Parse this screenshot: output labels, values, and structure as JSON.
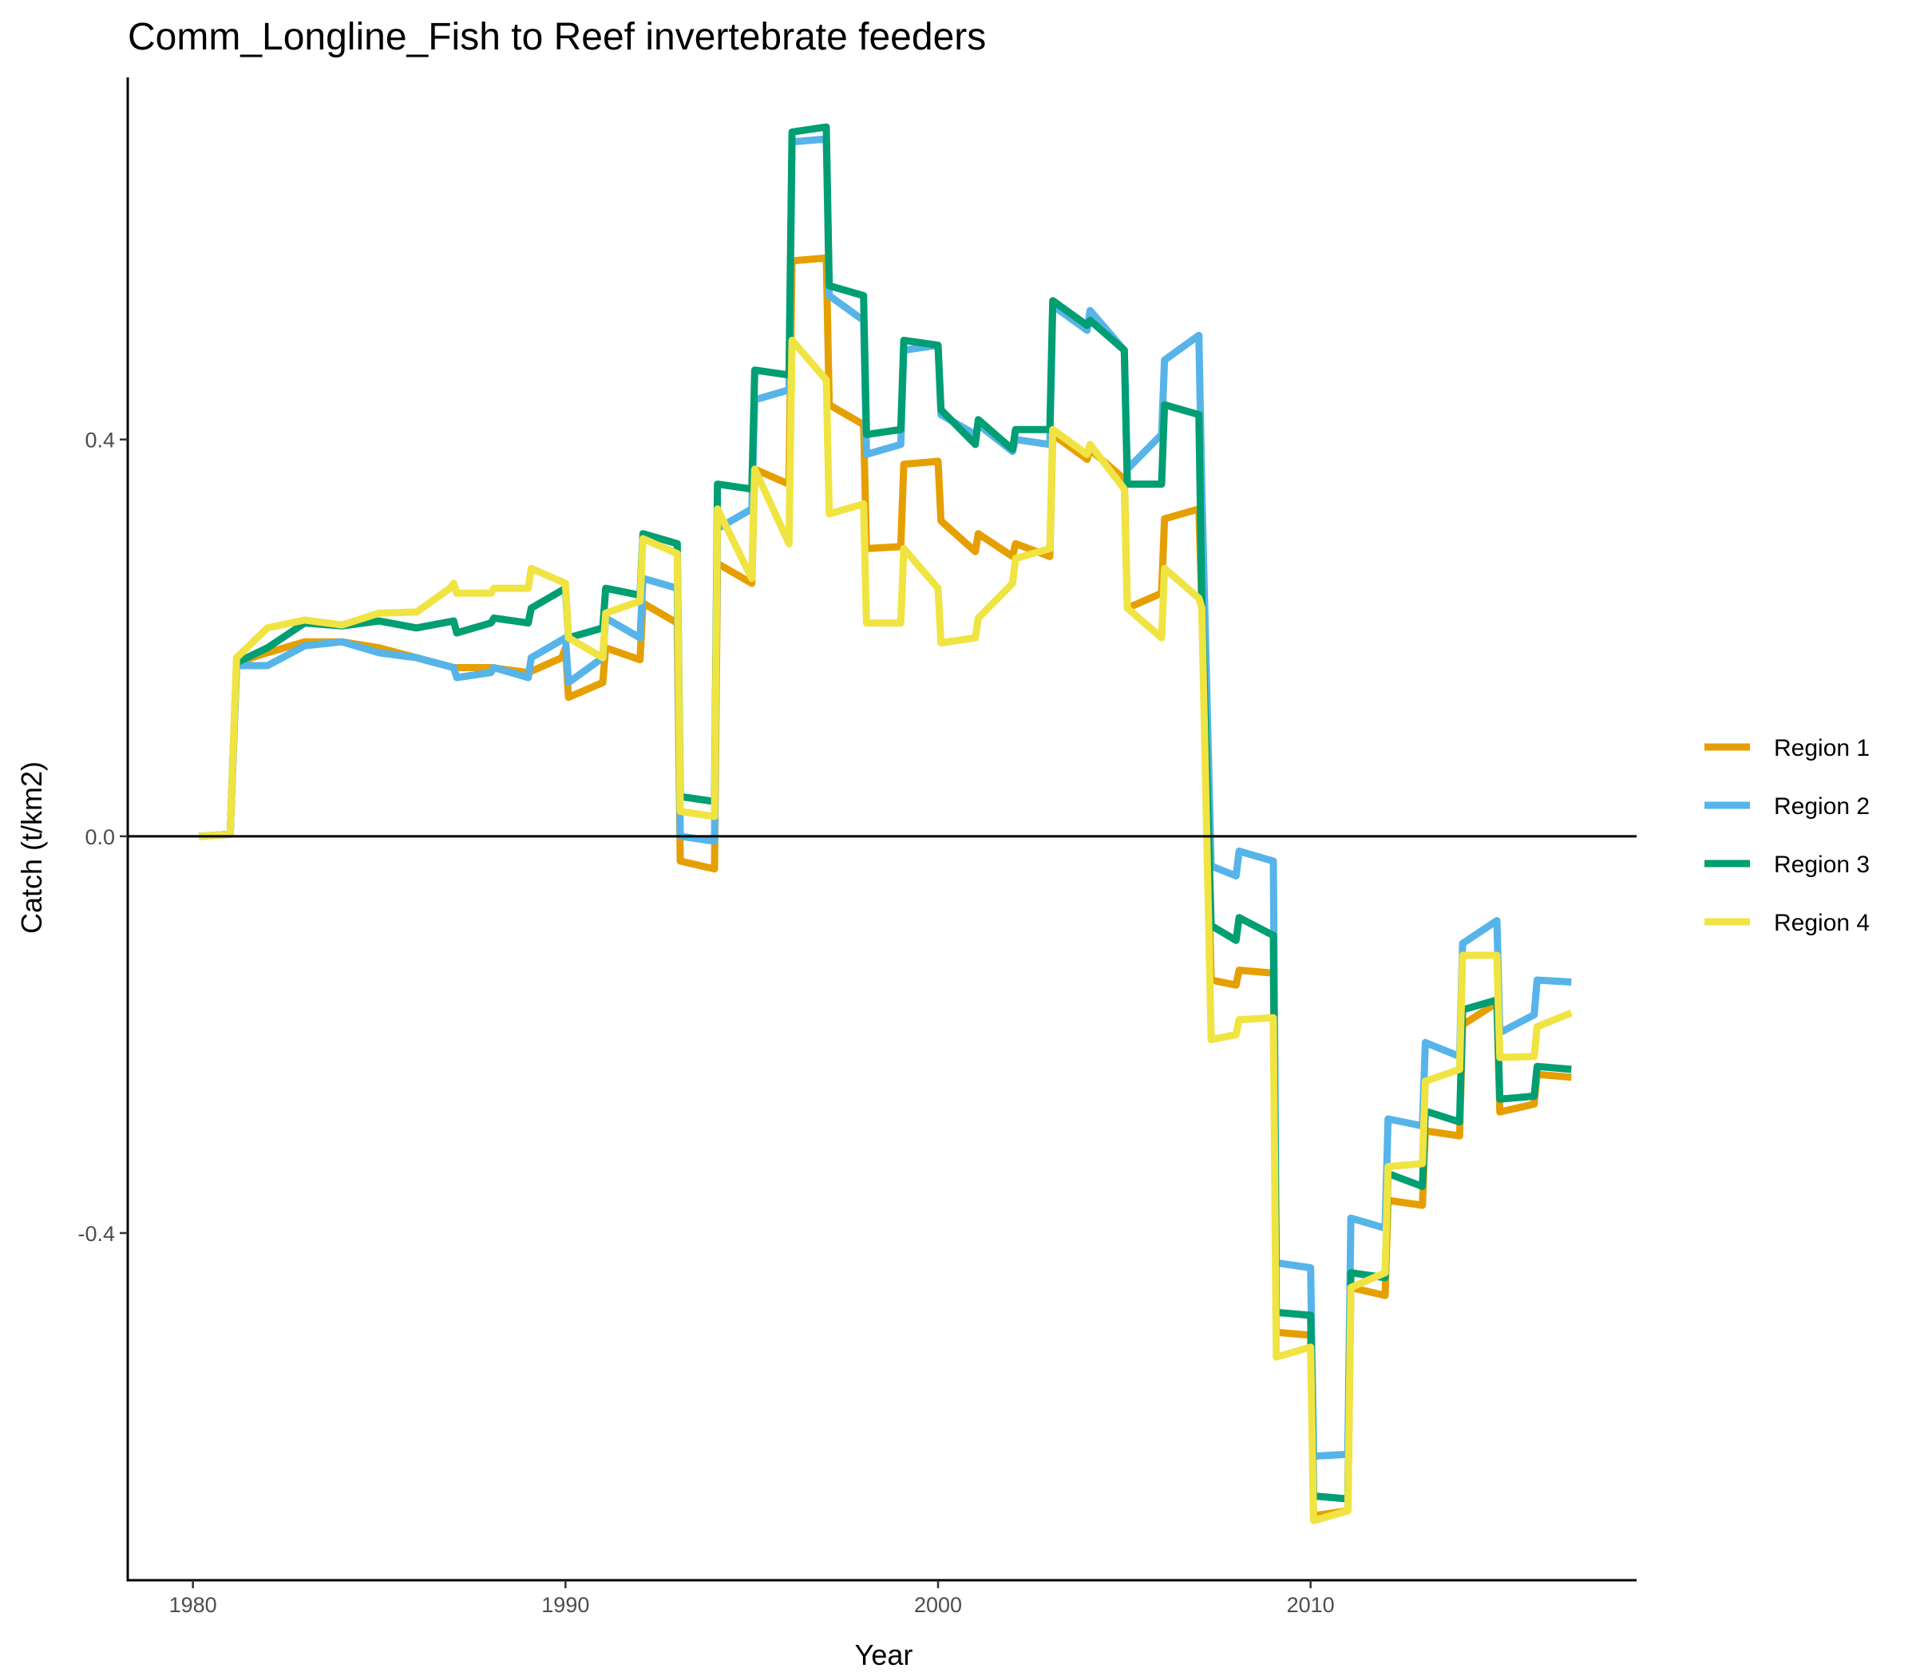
{
  "chart_data": {
    "type": "line",
    "title": "Comm_Longline_Fish to Reef invertebrate feeders",
    "xlabel": "Year",
    "ylabel": "Catch (t/km2)",
    "xlim": [
      1978.25,
      2018.75
    ],
    "ylim": [
      -0.75,
      0.765
    ],
    "xticks": [
      1980,
      1990,
      2000,
      2010
    ],
    "yticks": [
      -0.4,
      0.0,
      0.4
    ],
    "ytick_labels": [
      "-0.4",
      "0.0",
      "0.4"
    ],
    "zero_line": true,
    "grid": false,
    "legend_position": "right",
    "series": [
      {
        "name": "Region 1",
        "color": "#E69F00",
        "points": [
          [
            1980.17,
            0
          ],
          [
            1981.0,
            0.002
          ],
          [
            1981.17,
            0.175
          ],
          [
            1982.0,
            0.185
          ],
          [
            1983.0,
            0.196
          ],
          [
            1984.0,
            0.196
          ],
          [
            1985.0,
            0.19
          ],
          [
            1986.0,
            0.18
          ],
          [
            1987.0,
            0.17
          ],
          [
            1988.0,
            0.17
          ],
          [
            1989.0,
            0.165
          ],
          [
            1989.9,
            0.18
          ],
          [
            1990.0,
            0.19
          ],
          [
            1990.08,
            0.14
          ],
          [
            1991.0,
            0.155
          ],
          [
            1991.08,
            0.19
          ],
          [
            1992.0,
            0.178
          ],
          [
            1992.08,
            0.235
          ],
          [
            1993.0,
            0.215
          ],
          [
            1993.08,
            -0.025
          ],
          [
            1994.0,
            -0.033
          ],
          [
            1994.08,
            0.275
          ],
          [
            1995.0,
            0.255
          ],
          [
            1995.08,
            0.37
          ],
          [
            1996.0,
            0.355
          ],
          [
            1996.08,
            0.58
          ],
          [
            1997.0,
            0.583
          ],
          [
            1997.08,
            0.435
          ],
          [
            1998.0,
            0.415
          ],
          [
            1998.08,
            0.29
          ],
          [
            1999.0,
            0.292
          ],
          [
            1999.08,
            0.375
          ],
          [
            2000.0,
            0.378
          ],
          [
            2000.08,
            0.318
          ],
          [
            2001.0,
            0.287
          ],
          [
            2001.08,
            0.305
          ],
          [
            2002.0,
            0.282
          ],
          [
            2002.08,
            0.295
          ],
          [
            2003.0,
            0.282
          ],
          [
            2003.08,
            0.405
          ],
          [
            2004.0,
            0.38
          ],
          [
            2004.08,
            0.39
          ],
          [
            2005.0,
            0.36
          ],
          [
            2005.08,
            0.23
          ],
          [
            2006.0,
            0.245
          ],
          [
            2006.08,
            0.32
          ],
          [
            2007.0,
            0.33
          ],
          [
            2007.08,
            0.23
          ],
          [
            2007.33,
            -0.145
          ],
          [
            2008.0,
            -0.15
          ],
          [
            2008.08,
            -0.135
          ],
          [
            2009.0,
            -0.138
          ],
          [
            2009.08,
            -0.5
          ],
          [
            2010.0,
            -0.503
          ],
          [
            2010.08,
            -0.685
          ],
          [
            2011.0,
            -0.68
          ],
          [
            2011.08,
            -0.455
          ],
          [
            2012.0,
            -0.463
          ],
          [
            2012.08,
            -0.367
          ],
          [
            2013.0,
            -0.372
          ],
          [
            2013.08,
            -0.297
          ],
          [
            2014.0,
            -0.302
          ],
          [
            2014.08,
            -0.19
          ],
          [
            2015.0,
            -0.168
          ],
          [
            2015.08,
            -0.278
          ],
          [
            2016.0,
            -0.27
          ],
          [
            2016.08,
            -0.24
          ],
          [
            2017.0,
            -0.243
          ]
        ]
      },
      {
        "name": "Region 2",
        "color": "#56B4E9",
        "points": [
          [
            1980.17,
            0
          ],
          [
            1981.0,
            0.002
          ],
          [
            1981.17,
            0.172
          ],
          [
            1982.0,
            0.172
          ],
          [
            1983.0,
            0.192
          ],
          [
            1984.0,
            0.196
          ],
          [
            1985.0,
            0.185
          ],
          [
            1986.0,
            0.18
          ],
          [
            1987.0,
            0.17
          ],
          [
            1987.08,
            0.16
          ],
          [
            1988.0,
            0.165
          ],
          [
            1988.08,
            0.17
          ],
          [
            1989.0,
            0.16
          ],
          [
            1989.08,
            0.18
          ],
          [
            1990.0,
            0.2
          ],
          [
            1990.08,
            0.155
          ],
          [
            1991.0,
            0.18
          ],
          [
            1991.08,
            0.22
          ],
          [
            1992.0,
            0.2
          ],
          [
            1992.08,
            0.26
          ],
          [
            1993.0,
            0.25
          ],
          [
            1993.08,
            0.0
          ],
          [
            1994.0,
            -0.005
          ],
          [
            1994.08,
            0.31
          ],
          [
            1995.0,
            0.33
          ],
          [
            1995.08,
            0.44
          ],
          [
            1996.0,
            0.45
          ],
          [
            1996.08,
            0.7
          ],
          [
            1997.0,
            0.703
          ],
          [
            1997.08,
            0.545
          ],
          [
            1998.0,
            0.52
          ],
          [
            1998.08,
            0.385
          ],
          [
            1999.0,
            0.395
          ],
          [
            1999.08,
            0.49
          ],
          [
            2000.0,
            0.495
          ],
          [
            2000.08,
            0.425
          ],
          [
            2001.0,
            0.405
          ],
          [
            2001.08,
            0.415
          ],
          [
            2002.0,
            0.388
          ],
          [
            2002.08,
            0.4
          ],
          [
            2003.0,
            0.395
          ],
          [
            2003.08,
            0.535
          ],
          [
            2004.0,
            0.51
          ],
          [
            2004.08,
            0.53
          ],
          [
            2005.0,
            0.49
          ],
          [
            2005.08,
            0.37
          ],
          [
            2006.0,
            0.405
          ],
          [
            2006.08,
            0.48
          ],
          [
            2007.0,
            0.505
          ],
          [
            2007.08,
            0.35
          ],
          [
            2007.33,
            -0.03
          ],
          [
            2008.0,
            -0.04
          ],
          [
            2008.08,
            -0.015
          ],
          [
            2009.0,
            -0.025
          ],
          [
            2009.08,
            -0.43
          ],
          [
            2010.0,
            -0.435
          ],
          [
            2010.08,
            -0.625
          ],
          [
            2011.0,
            -0.623
          ],
          [
            2011.08,
            -0.385
          ],
          [
            2012.0,
            -0.395
          ],
          [
            2012.08,
            -0.285
          ],
          [
            2013.0,
            -0.292
          ],
          [
            2013.08,
            -0.208
          ],
          [
            2014.0,
            -0.222
          ],
          [
            2014.08,
            -0.108
          ],
          [
            2015.0,
            -0.085
          ],
          [
            2015.08,
            -0.198
          ],
          [
            2016.0,
            -0.18
          ],
          [
            2016.08,
            -0.145
          ],
          [
            2017.0,
            -0.147
          ]
        ]
      },
      {
        "name": "Region 3",
        "color": "#009E73",
        "points": [
          [
            1980.17,
            0
          ],
          [
            1981.0,
            0.002
          ],
          [
            1981.17,
            0.175
          ],
          [
            1982.0,
            0.19
          ],
          [
            1983.0,
            0.215
          ],
          [
            1984.0,
            0.212
          ],
          [
            1985.0,
            0.217
          ],
          [
            1986.0,
            0.21
          ],
          [
            1987.0,
            0.217
          ],
          [
            1987.08,
            0.205
          ],
          [
            1988.0,
            0.215
          ],
          [
            1988.08,
            0.22
          ],
          [
            1989.0,
            0.215
          ],
          [
            1989.08,
            0.23
          ],
          [
            1990.0,
            0.25
          ],
          [
            1990.08,
            0.2
          ],
          [
            1991.0,
            0.21
          ],
          [
            1991.08,
            0.25
          ],
          [
            1992.0,
            0.243
          ],
          [
            1992.08,
            0.305
          ],
          [
            1993.0,
            0.295
          ],
          [
            1993.08,
            0.04
          ],
          [
            1994.0,
            0.035
          ],
          [
            1994.08,
            0.355
          ],
          [
            1995.0,
            0.35
          ],
          [
            1995.08,
            0.47
          ],
          [
            1996.0,
            0.465
          ],
          [
            1996.08,
            0.71
          ],
          [
            1997.0,
            0.715
          ],
          [
            1997.08,
            0.555
          ],
          [
            1998.0,
            0.545
          ],
          [
            1998.08,
            0.405
          ],
          [
            1999.0,
            0.41
          ],
          [
            1999.08,
            0.5
          ],
          [
            2000.0,
            0.495
          ],
          [
            2000.08,
            0.43
          ],
          [
            2001.0,
            0.395
          ],
          [
            2001.08,
            0.42
          ],
          [
            2002.0,
            0.39
          ],
          [
            2002.08,
            0.41
          ],
          [
            2003.0,
            0.41
          ],
          [
            2003.08,
            0.54
          ],
          [
            2004.0,
            0.515
          ],
          [
            2004.08,
            0.52
          ],
          [
            2005.0,
            0.49
          ],
          [
            2005.08,
            0.355
          ],
          [
            2006.0,
            0.355
          ],
          [
            2006.08,
            0.435
          ],
          [
            2007.0,
            0.425
          ],
          [
            2007.08,
            0.24
          ],
          [
            2007.33,
            -0.09
          ],
          [
            2008.0,
            -0.105
          ],
          [
            2008.08,
            -0.082
          ],
          [
            2009.0,
            -0.1
          ],
          [
            2009.08,
            -0.48
          ],
          [
            2010.0,
            -0.483
          ],
          [
            2010.08,
            -0.665
          ],
          [
            2011.0,
            -0.668
          ],
          [
            2011.08,
            -0.44
          ],
          [
            2012.0,
            -0.445
          ],
          [
            2012.08,
            -0.34
          ],
          [
            2013.0,
            -0.353
          ],
          [
            2013.08,
            -0.277
          ],
          [
            2014.0,
            -0.288
          ],
          [
            2014.08,
            -0.175
          ],
          [
            2015.0,
            -0.165
          ],
          [
            2015.08,
            -0.265
          ],
          [
            2016.0,
            -0.262
          ],
          [
            2016.08,
            -0.232
          ],
          [
            2017.0,
            -0.235
          ]
        ]
      },
      {
        "name": "Region 4",
        "color": "#F0E442",
        "points": [
          [
            1980.17,
            0
          ],
          [
            1981.0,
            0.002
          ],
          [
            1981.17,
            0.18
          ],
          [
            1982.0,
            0.21
          ],
          [
            1983.0,
            0.218
          ],
          [
            1984.0,
            0.213
          ],
          [
            1985.0,
            0.225
          ],
          [
            1986.0,
            0.226
          ],
          [
            1986.9,
            0.25
          ],
          [
            1987.0,
            0.255
          ],
          [
            1987.08,
            0.245
          ],
          [
            1988.0,
            0.245
          ],
          [
            1988.08,
            0.25
          ],
          [
            1989.0,
            0.25
          ],
          [
            1989.08,
            0.27
          ],
          [
            1990.0,
            0.255
          ],
          [
            1990.08,
            0.2
          ],
          [
            1991.0,
            0.18
          ],
          [
            1991.08,
            0.225
          ],
          [
            1992.0,
            0.237
          ],
          [
            1992.08,
            0.3
          ],
          [
            1993.0,
            0.285
          ],
          [
            1993.08,
            0.025
          ],
          [
            1994.0,
            0.02
          ],
          [
            1994.08,
            0.33
          ],
          [
            1995.0,
            0.26
          ],
          [
            1995.08,
            0.37
          ],
          [
            1996.0,
            0.295
          ],
          [
            1996.08,
            0.5
          ],
          [
            1997.0,
            0.46
          ],
          [
            1997.08,
            0.325
          ],
          [
            1998.0,
            0.335
          ],
          [
            1998.08,
            0.215
          ],
          [
            1999.0,
            0.215
          ],
          [
            1999.08,
            0.29
          ],
          [
            2000.0,
            0.25
          ],
          [
            2000.08,
            0.195
          ],
          [
            2001.0,
            0.2
          ],
          [
            2001.08,
            0.22
          ],
          [
            2002.0,
            0.255
          ],
          [
            2002.08,
            0.28
          ],
          [
            2003.0,
            0.29
          ],
          [
            2003.08,
            0.41
          ],
          [
            2004.0,
            0.385
          ],
          [
            2004.08,
            0.395
          ],
          [
            2005.0,
            0.35
          ],
          [
            2005.08,
            0.23
          ],
          [
            2006.0,
            0.2
          ],
          [
            2006.08,
            0.27
          ],
          [
            2007.0,
            0.24
          ],
          [
            2007.08,
            0.23
          ],
          [
            2007.33,
            -0.205
          ],
          [
            2008.0,
            -0.2
          ],
          [
            2008.08,
            -0.185
          ],
          [
            2009.0,
            -0.183
          ],
          [
            2009.08,
            -0.525
          ],
          [
            2010.0,
            -0.515
          ],
          [
            2010.08,
            -0.69
          ],
          [
            2011.0,
            -0.68
          ],
          [
            2011.08,
            -0.455
          ],
          [
            2012.0,
            -0.44
          ],
          [
            2012.08,
            -0.333
          ],
          [
            2013.0,
            -0.33
          ],
          [
            2013.08,
            -0.247
          ],
          [
            2014.0,
            -0.235
          ],
          [
            2014.08,
            -0.12
          ],
          [
            2015.0,
            -0.12
          ],
          [
            2015.08,
            -0.223
          ],
          [
            2016.0,
            -0.222
          ],
          [
            2016.08,
            -0.192
          ],
          [
            2017.0,
            -0.178
          ]
        ]
      }
    ]
  }
}
